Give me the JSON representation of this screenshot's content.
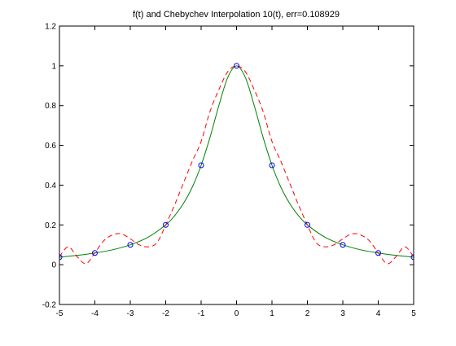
{
  "chart_data": {
    "type": "line",
    "title": "f(t) and Chebychev Interpolation 10(t), err=0.108929",
    "xlabel": "",
    "ylabel": "",
    "xlim": [
      -5,
      5
    ],
    "ylim": [
      -0.2,
      1.2
    ],
    "x_ticks": [
      -5,
      -4,
      -3,
      -2,
      -1,
      0,
      1,
      2,
      3,
      4,
      5
    ],
    "x_tick_labels": [
      "-5",
      "-4",
      "-3",
      "-2",
      "-1",
      "0",
      "1",
      "2",
      "3",
      "4",
      "5"
    ],
    "y_ticks": [
      -0.2,
      0,
      0.2,
      0.4,
      0.6,
      0.8,
      1.0,
      1.2
    ],
    "y_tick_labels": [
      "-0.2",
      "0",
      "0.2",
      "0.4",
      "0.6",
      "0.8",
      "1",
      "1.2"
    ],
    "grid": false,
    "legend": "none",
    "series": [
      {
        "style": "solid",
        "color": "#008000",
        "x": [
          -5,
          -4.5,
          -4,
          -3.5,
          -3,
          -2.5,
          -2,
          -1.75,
          -1.5,
          -1.25,
          -1,
          -0.75,
          -0.5,
          -0.25,
          0,
          0.25,
          0.5,
          0.75,
          1,
          1.25,
          1.5,
          1.75,
          2,
          2.5,
          3,
          3.5,
          4,
          4.5,
          5
        ],
        "y": [
          0.038,
          0.047,
          0.059,
          0.075,
          0.1,
          0.138,
          0.2,
          0.246,
          0.308,
          0.39,
          0.5,
          0.64,
          0.8,
          0.941,
          1.0,
          0.941,
          0.8,
          0.64,
          0.5,
          0.39,
          0.308,
          0.246,
          0.2,
          0.138,
          0.1,
          0.075,
          0.059,
          0.047,
          0.038
        ]
      },
      {
        "style": "dashed",
        "color": "#ff0000",
        "x": [
          -5,
          -4.75,
          -4.5,
          -4.25,
          -4,
          -3.75,
          -3.5,
          -3.25,
          -3,
          -2.75,
          -2.5,
          -2.25,
          -2,
          -1.75,
          -1.5,
          -1.25,
          -1,
          -0.75,
          -0.5,
          -0.25,
          0,
          0.25,
          0.5,
          0.75,
          1,
          1.25,
          1.5,
          1.75,
          2,
          2.25,
          2.5,
          2.75,
          3,
          3.25,
          3.5,
          3.75,
          4,
          4.25,
          4.5,
          4.75,
          5
        ],
        "y": [
          0.04,
          0.09,
          0.04,
          0.005,
          0.06,
          0.12,
          0.15,
          0.155,
          0.13,
          0.1,
          0.09,
          0.11,
          0.2,
          0.3,
          0.41,
          0.52,
          0.62,
          0.77,
          0.88,
          0.97,
          1.0,
          0.97,
          0.88,
          0.77,
          0.62,
          0.52,
          0.41,
          0.3,
          0.2,
          0.11,
          0.09,
          0.1,
          0.13,
          0.155,
          0.15,
          0.12,
          0.06,
          0.005,
          0.04,
          0.09,
          0.04
        ]
      },
      {
        "style": "markers",
        "marker": "circle",
        "color": "#0000ff",
        "x": [
          -5,
          -4,
          -3,
          -2,
          -1,
          0,
          1,
          2,
          3,
          4,
          5
        ],
        "y": [
          0.038,
          0.059,
          0.1,
          0.2,
          0.5,
          1.0,
          0.5,
          0.2,
          0.1,
          0.059,
          0.038
        ]
      }
    ]
  }
}
